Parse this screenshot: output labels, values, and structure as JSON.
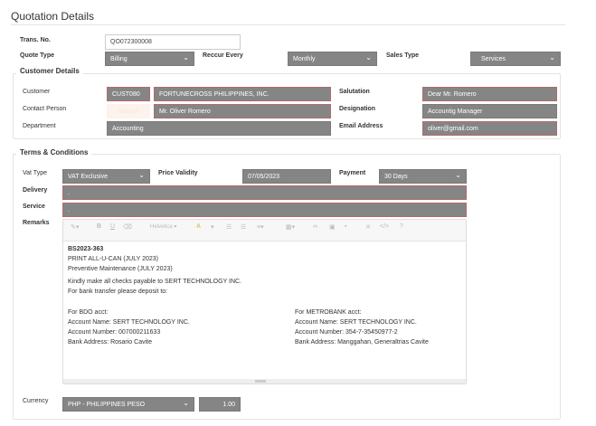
{
  "title": "Quotation Details",
  "header": {
    "trans_no_label": "Trans. No.",
    "trans_no": "QO072300008",
    "quote_type_label": "Quote Type",
    "quote_type": "Billing",
    "reccur_label": "Reccur Every",
    "reccur": "Monthly",
    "sales_type_label": "Sales Type",
    "sales_type": "Services"
  },
  "customer": {
    "legend": "Customer Details",
    "customer_label": "Customer",
    "customer_code": "CUST080",
    "customer_name": "FORTUNECROSS PHILIPPINES, INC.",
    "contact_label": "Contact Person",
    "search_label": "Search",
    "contact": "Mr. Oliver Romero",
    "department_label": "Department",
    "department": "Accounting",
    "salutation_label": "Salutation",
    "salutation": "Dear Mr. Romero",
    "designation_label": "Designation",
    "designation": "Accountig Manager",
    "email_label": "Email Address",
    "email": "oliver@gmail.com"
  },
  "terms": {
    "legend": "Terms & Conditions",
    "vat_label": "Vat Type",
    "vat": "VAT Exclusive",
    "validity_label": "Price Validity",
    "validity": "07/05/2023",
    "payment_label": "Payment",
    "payment": "30 Days",
    "delivery_label": "Delivery",
    "delivery": ".",
    "service_label": "Service",
    "service": ".",
    "remarks_label": "Remarks",
    "toolbar": {
      "font": "Helvetica"
    },
    "remarks": {
      "l1": "BS2023-363",
      "l2": "PRINT ALL-U-CAN (JULY 2023)",
      "l3": "Preventive Maintenance (JULY 2023)",
      "l4": "Kindly make all checks payable to SERT TECHNOLOGY INC.",
      "l5": "For bank transfer please deposit to:",
      "bdo": [
        "For BDO acct:",
        "Account Name: SERT TECHNOLOGY INC.",
        "Account Number: 007000211633",
        "Bank Address: Rosario Cavite"
      ],
      "metro": [
        "For METROBANK acct:",
        "Account Name: SERT TECHNOLOGY INC.",
        "Account Number: 354-7-35450977-2",
        "Bank Address: Manggahan, Generaltrias Cavite"
      ]
    },
    "currency_label": "Currency",
    "currency": "PHP - PHILIPPINES PESO",
    "rate": "1.00"
  }
}
